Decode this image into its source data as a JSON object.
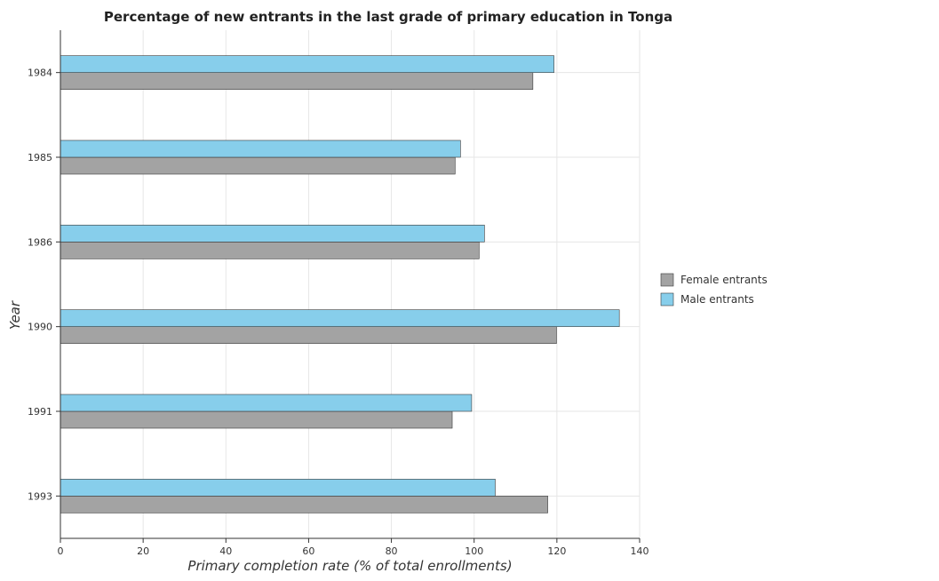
{
  "chart_data": {
    "type": "bar",
    "orientation": "horizontal",
    "title": "Percentage of new entrants in the last grade of primary education in Tonga",
    "xlabel": "Primary completion rate (% of total enrollments)",
    "ylabel": "Year",
    "categories": [
      "1984",
      "1985",
      "1986",
      "1990",
      "1991",
      "1993"
    ],
    "series": [
      {
        "name": "Female entrants",
        "color": "#a3a3a3",
        "values": [
          114.2,
          95.4,
          101.2,
          119.9,
          94.7,
          117.8
        ]
      },
      {
        "name": "Male entrants",
        "color": "#87ceeb",
        "values": [
          119.3,
          96.7,
          102.5,
          135.1,
          99.4,
          105.1
        ]
      }
    ],
    "xlim": [
      0,
      140
    ],
    "xticks": [
      "0",
      "20",
      "40",
      "60",
      "80",
      "100",
      "120",
      "140"
    ],
    "grid": true,
    "legend_position": "right"
  }
}
